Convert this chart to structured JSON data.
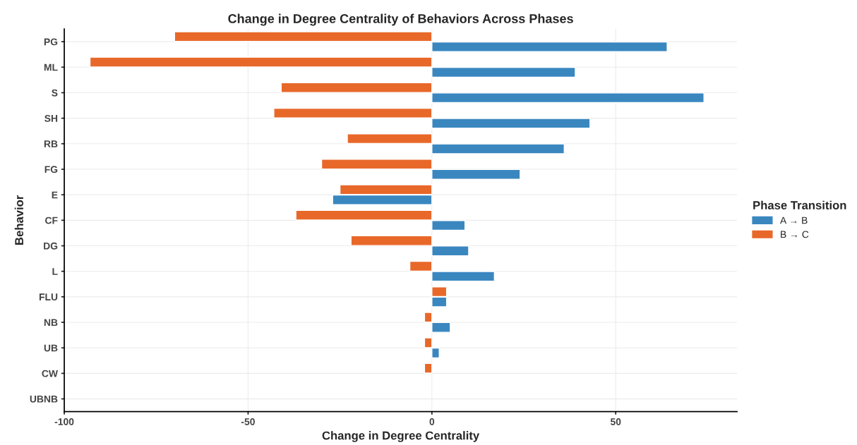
{
  "chart_data": {
    "type": "bar",
    "orientation": "horizontal",
    "title": "Change in Degree Centrality of Behaviors Across Phases",
    "xlabel": "Change in Degree Centrality",
    "ylabel": "Behavior",
    "legend_title": "Phase Transition",
    "legend": "right",
    "grid": true,
    "categories": [
      "PG",
      "ML",
      "S",
      "SH",
      "RB",
      "FG",
      "E",
      "CF",
      "DG",
      "L",
      "FLU",
      "NB",
      "UB",
      "CW",
      "UBNB"
    ],
    "series": [
      {
        "name": "A → B",
        "color": "#3a87c0",
        "values": [
          64,
          39,
          74,
          43,
          36,
          24,
          -27,
          9,
          10,
          17,
          4,
          5,
          2,
          null,
          null
        ]
      },
      {
        "name": "B → C",
        "color": "#e8682a",
        "values": [
          -70,
          -93,
          -41,
          -43,
          -23,
          -30,
          -25,
          -37,
          -22,
          -6,
          4,
          -2,
          -2,
          -2,
          null
        ]
      }
    ],
    "xlim": [
      -100,
      83
    ],
    "xticks": [
      -100,
      -50,
      0,
      50
    ]
  }
}
